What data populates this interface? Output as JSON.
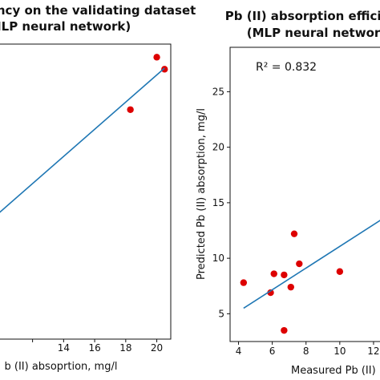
{
  "chart_data": [
    {
      "type": "scatter",
      "title_lines": [
        "ciency on the validating dataset",
        "MLP neural network)"
      ],
      "xlabel": "b (II) absoprtion, mg/l",
      "ylabel": "",
      "xlim": [
        9.8,
        20.9
      ],
      "ylim": [
        1.0,
        28.0
      ],
      "x_ticks": [
        12,
        14,
        16,
        18,
        20
      ],
      "x_tick_labels": [
        "",
        "14",
        "16",
        "18",
        "20"
      ],
      "y_ticks": [],
      "grid": false,
      "points": [
        {
          "x": 18.3,
          "y": 22.0
        },
        {
          "x": 20.0,
          "y": 26.8
        },
        {
          "x": 20.5,
          "y": 25.7
        }
      ],
      "fit_line": {
        "x": [
          9.8,
          20.5
        ],
        "y": [
          12.5,
          25.8
        ]
      },
      "colors": {
        "points": "#dd0000",
        "line": "#1f77b4"
      }
    },
    {
      "type": "scatter",
      "title_lines": [
        "Pb (II) absorption efficienc",
        "(MLP neural network"
      ],
      "xlabel": "Measured Pb (II)",
      "ylabel": "Predicted Pb (II) absorption, mg/l",
      "xlim": [
        3.5,
        13.0
      ],
      "ylim": [
        2.5,
        29.0
      ],
      "x_ticks": [
        4,
        6,
        8,
        10,
        12
      ],
      "x_tick_labels": [
        "4",
        "6",
        "8",
        "10",
        "12"
      ],
      "y_ticks": [
        5,
        10,
        15,
        20,
        25
      ],
      "y_tick_labels": [
        "5",
        "10",
        "15",
        "20",
        "25"
      ],
      "grid": false,
      "annotation": "R² = 0.832",
      "points": [
        {
          "x": 4.3,
          "y": 7.8
        },
        {
          "x": 5.9,
          "y": 6.9
        },
        {
          "x": 6.1,
          "y": 8.6
        },
        {
          "x": 6.7,
          "y": 8.5
        },
        {
          "x": 6.7,
          "y": 3.5
        },
        {
          "x": 7.1,
          "y": 7.4
        },
        {
          "x": 7.3,
          "y": 12.2
        },
        {
          "x": 7.6,
          "y": 9.5
        },
        {
          "x": 10.0,
          "y": 8.8
        }
      ],
      "fit_line": {
        "x": [
          4.3,
          13.0
        ],
        "y": [
          5.5,
          14.0
        ]
      },
      "colors": {
        "points": "#dd0000",
        "line": "#1f77b4"
      }
    }
  ]
}
